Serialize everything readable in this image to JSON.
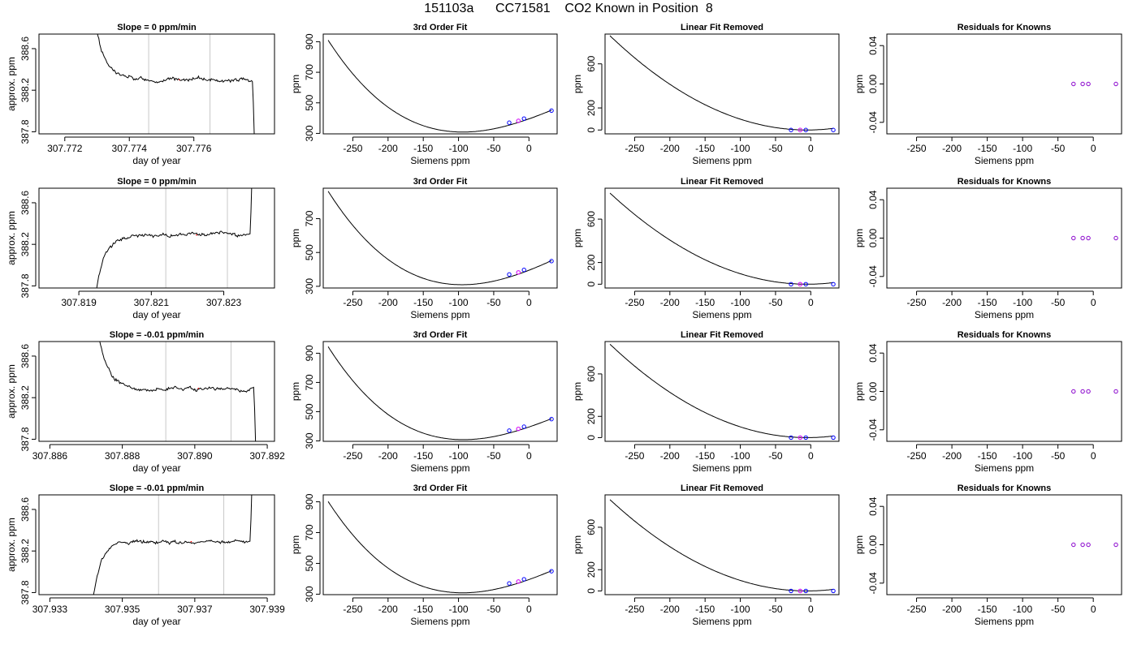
{
  "title": "151103a      CC71581    CO2 Known in Position  8",
  "chart_data": [
    {
      "row": 0,
      "col": 0,
      "type": "line",
      "title": "Slope =  0  ppm/min",
      "xlabel": "day of year",
      "ylabel": "approx. ppm",
      "xlim": [
        307.7712,
        307.7785
      ],
      "ylim": [
        387.78,
        388.74
      ],
      "xticks": [
        307.772,
        307.774,
        307.776
      ],
      "xticklabels": [
        "307.772",
        "307.774",
        "307.776"
      ],
      "yticks": [
        387.8,
        388.2,
        388.6
      ],
      "yticklabels": [
        "387.8",
        "388.2",
        "388.6"
      ],
      "vlines": [
        307.7746,
        307.7765
      ],
      "settle_from": "high",
      "x_start": 307.7728,
      "x_end": 307.7779,
      "level": 388.3
    },
    {
      "row": 1,
      "col": 0,
      "type": "line",
      "title": "Slope =  0  ppm/min",
      "xlabel": "day of year",
      "ylabel": "approx. ppm",
      "xlim": [
        307.8179,
        307.8244
      ],
      "ylim": [
        387.78,
        388.74
      ],
      "xticks": [
        307.819,
        307.821,
        307.823
      ],
      "xticklabels": [
        "307.819",
        "307.821",
        "307.823"
      ],
      "yticks": [
        387.8,
        388.2,
        388.6
      ],
      "yticklabels": [
        "387.8",
        "388.2",
        "388.6"
      ],
      "vlines": [
        307.8214,
        307.8231
      ],
      "settle_from": "low",
      "x_start": 307.8193,
      "x_end": 307.8238,
      "level": 388.29
    },
    {
      "row": 2,
      "col": 0,
      "type": "line",
      "title": "Slope =  -0.01  ppm/min",
      "xlabel": "day of year",
      "ylabel": "approx. ppm",
      "xlim": [
        307.8857,
        307.8922
      ],
      "ylim": [
        387.78,
        388.74
      ],
      "xticks": [
        307.886,
        307.888,
        307.89,
        307.892
      ],
      "xticklabels": [
        "307.886",
        "307.888",
        "307.890",
        "307.892"
      ],
      "yticks": [
        387.8,
        388.2,
        388.6
      ],
      "yticklabels": [
        "387.8",
        "388.2",
        "388.6"
      ],
      "vlines": [
        307.8892,
        307.891
      ],
      "settle_from": "high",
      "x_start": 307.8872,
      "x_end": 307.8917,
      "level": 388.29
    },
    {
      "row": 3,
      "col": 0,
      "type": "line",
      "title": "Slope =  -0.01  ppm/min",
      "xlabel": "day of year",
      "ylabel": "approx. ppm",
      "xlim": [
        307.9327,
        307.9392
      ],
      "ylim": [
        387.78,
        388.74
      ],
      "xticks": [
        307.933,
        307.935,
        307.937,
        307.939
      ],
      "xticklabels": [
        "307.933",
        "307.935",
        "307.937",
        "307.939"
      ],
      "yticks": [
        387.8,
        388.2,
        388.6
      ],
      "yticklabels": [
        "387.8",
        "388.2",
        "388.6"
      ],
      "vlines": [
        307.936,
        307.9378
      ],
      "settle_from": "low",
      "x_start": 307.934,
      "x_end": 307.9386,
      "level": 388.29
    },
    {
      "row": 0,
      "col": 1,
      "type": "scatter",
      "title": "3rd Order Fit",
      "xlabel": "Siemens ppm",
      "ylabel": "ppm",
      "xlim": [
        -292,
        40
      ],
      "ylim": [
        297,
        950
      ],
      "xticks": [
        -250,
        -200,
        -150,
        -100,
        -50,
        0
      ],
      "xticklabels": [
        "-250",
        "-200",
        "-150",
        "-100",
        "-50",
        "0"
      ],
      "yticks": [
        300,
        500,
        700,
        900
      ],
      "yticklabels": [
        "300",
        "500",
        "700",
        "900"
      ],
      "curve": {
        "model": "cubic",
        "x": [
          -285,
          -110,
          0,
          30
        ],
        "y": [
          910,
          312,
          395,
          448
        ]
      },
      "points": [
        {
          "x": -28,
          "y": 370,
          "color": "#0000ff"
        },
        {
          "x": -15,
          "y": 382,
          "color": "#00cccc"
        },
        {
          "x": -15,
          "y": 382,
          "color": "#ff00ff"
        },
        {
          "x": -7,
          "y": 397,
          "color": "#0000ff"
        },
        {
          "x": 32,
          "y": 449,
          "color": "#0000ff"
        }
      ]
    },
    {
      "row": 1,
      "col": 1,
      "type": "scatter",
      "title": "3rd Order Fit",
      "xlabel": "Siemens ppm",
      "ylabel": "ppm",
      "xlim": [
        -292,
        40
      ],
      "ylim": [
        290,
        880
      ],
      "xticks": [
        -250,
        -200,
        -150,
        -100,
        -50,
        0
      ],
      "xticklabels": [
        "-250",
        "-200",
        "-150",
        "-100",
        "-50",
        "0"
      ],
      "yticks": [
        300,
        500,
        700
      ],
      "yticklabels": [
        "300",
        "500",
        "700"
      ],
      "curve": {
        "model": "cubic",
        "x": [
          -285,
          -110,
          0,
          30
        ],
        "y": [
          862,
          312,
          395,
          448
        ]
      },
      "points": [
        {
          "x": -28,
          "y": 370,
          "color": "#0000ff"
        },
        {
          "x": -15,
          "y": 382,
          "color": "#00cccc"
        },
        {
          "x": -15,
          "y": 382,
          "color": "#ff00ff"
        },
        {
          "x": -7,
          "y": 397,
          "color": "#0000ff"
        },
        {
          "x": 32,
          "y": 449,
          "color": "#0000ff"
        }
      ]
    },
    {
      "row": 2,
      "col": 1,
      "type": "scatter",
      "title": "3rd Order Fit",
      "xlabel": "Siemens ppm",
      "ylabel": "ppm",
      "xlim": [
        -292,
        40
      ],
      "ylim": [
        297,
        980
      ],
      "xticks": [
        -250,
        -200,
        -150,
        -100,
        -50,
        0
      ],
      "xticklabels": [
        "-250",
        "-200",
        "-150",
        "-100",
        "-50",
        "0"
      ],
      "yticks": [
        300,
        500,
        700,
        900
      ],
      "yticklabels": [
        "300",
        "500",
        "700",
        "900"
      ],
      "curve": {
        "model": "cubic",
        "x": [
          -285,
          -110,
          0,
          30
        ],
        "y": [
          945,
          312,
          395,
          448
        ]
      },
      "points": [
        {
          "x": -28,
          "y": 370,
          "color": "#0000ff"
        },
        {
          "x": -15,
          "y": 382,
          "color": "#00cccc"
        },
        {
          "x": -15,
          "y": 382,
          "color": "#ff00ff"
        },
        {
          "x": -7,
          "y": 397,
          "color": "#0000ff"
        },
        {
          "x": 32,
          "y": 449,
          "color": "#0000ff"
        }
      ]
    },
    {
      "row": 3,
      "col": 1,
      "type": "scatter",
      "title": "3rd Order Fit",
      "xlabel": "Siemens ppm",
      "ylabel": "ppm",
      "xlim": [
        -292,
        40
      ],
      "ylim": [
        297,
        945
      ],
      "xticks": [
        -250,
        -200,
        -150,
        -100,
        -50,
        0
      ],
      "xticklabels": [
        "-250",
        "-200",
        "-150",
        "-100",
        "-50",
        "0"
      ],
      "yticks": [
        300,
        500,
        700,
        900
      ],
      "yticklabels": [
        "300",
        "500",
        "700",
        "900"
      ],
      "curve": {
        "model": "cubic",
        "x": [
          -285,
          -110,
          0,
          30
        ],
        "y": [
          902,
          312,
          395,
          448
        ]
      },
      "points": [
        {
          "x": -28,
          "y": 370,
          "color": "#0000ff"
        },
        {
          "x": -15,
          "y": 382,
          "color": "#00cccc"
        },
        {
          "x": -15,
          "y": 382,
          "color": "#ff00ff"
        },
        {
          "x": -7,
          "y": 397,
          "color": "#0000ff"
        },
        {
          "x": 32,
          "y": 449,
          "color": "#0000ff"
        }
      ]
    },
    {
      "row": 0,
      "col": 2,
      "type": "scatter",
      "title": "Linear Fit Removed",
      "xlabel": "Siemens ppm",
      "ylabel": "ppm",
      "xlim": [
        -292,
        40
      ],
      "ylim": [
        -35,
        870
      ],
      "xticks": [
        -250,
        -200,
        -150,
        -100,
        -50,
        0
      ],
      "xticklabels": [
        "-250",
        "-200",
        "-150",
        "-100",
        "-50",
        "0"
      ],
      "yticks": [
        0,
        200,
        600
      ],
      "yticklabels": [
        "0",
        "200",
        "600"
      ],
      "curve": {
        "model": "quad",
        "vertex": -5,
        "at": -285,
        "value": 855
      },
      "points": [
        {
          "x": -28,
          "y": 0,
          "color": "#0000ff"
        },
        {
          "x": -15,
          "y": 0,
          "color": "#00cccc"
        },
        {
          "x": -15,
          "y": 0,
          "color": "#ff00ff"
        },
        {
          "x": -7,
          "y": 0,
          "color": "#0000ff"
        },
        {
          "x": 32,
          "y": 0,
          "color": "#0000ff"
        }
      ]
    },
    {
      "row": 1,
      "col": 2,
      "type": "scatter",
      "title": "Linear Fit Removed",
      "xlabel": "Siemens ppm",
      "ylabel": "ppm",
      "xlim": [
        -292,
        40
      ],
      "ylim": [
        -35,
        885
      ],
      "xticks": [
        -250,
        -200,
        -150,
        -100,
        -50,
        0
      ],
      "xticklabels": [
        "-250",
        "-200",
        "-150",
        "-100",
        "-50",
        "0"
      ],
      "yticks": [
        0,
        200,
        600
      ],
      "yticklabels": [
        "0",
        "200",
        "600"
      ],
      "curve": {
        "model": "quad",
        "vertex": -5,
        "at": -285,
        "value": 840
      },
      "points": [
        {
          "x": -28,
          "y": 0,
          "color": "#0000ff"
        },
        {
          "x": -15,
          "y": 0,
          "color": "#00cccc"
        },
        {
          "x": -15,
          "y": 0,
          "color": "#ff00ff"
        },
        {
          "x": -7,
          "y": 0,
          "color": "#0000ff"
        },
        {
          "x": 32,
          "y": 0,
          "color": "#0000ff"
        }
      ]
    },
    {
      "row": 2,
      "col": 2,
      "type": "scatter",
      "title": "Linear Fit Removed",
      "xlabel": "Siemens ppm",
      "ylabel": "ppm",
      "xlim": [
        -292,
        40
      ],
      "ylim": [
        -35,
        905
      ],
      "xticks": [
        -250,
        -200,
        -150,
        -100,
        -50,
        0
      ],
      "xticklabels": [
        "-250",
        "-200",
        "-150",
        "-100",
        "-50",
        "0"
      ],
      "yticks": [
        0,
        200,
        600
      ],
      "yticklabels": [
        "0",
        "200",
        "600"
      ],
      "curve": {
        "model": "quad",
        "vertex": -5,
        "at": -285,
        "value": 880
      },
      "points": [
        {
          "x": -28,
          "y": 0,
          "color": "#0000ff"
        },
        {
          "x": -15,
          "y": 0,
          "color": "#00cccc"
        },
        {
          "x": -15,
          "y": 0,
          "color": "#ff00ff"
        },
        {
          "x": -7,
          "y": 0,
          "color": "#0000ff"
        },
        {
          "x": 32,
          "y": 0,
          "color": "#0000ff"
        }
      ]
    },
    {
      "row": 3,
      "col": 2,
      "type": "scatter",
      "title": "Linear Fit Removed",
      "xlabel": "Siemens ppm",
      "ylabel": "ppm",
      "xlim": [
        -292,
        40
      ],
      "ylim": [
        -35,
        905
      ],
      "xticks": [
        -250,
        -200,
        -150,
        -100,
        -50,
        0
      ],
      "xticklabels": [
        "-250",
        "-200",
        "-150",
        "-100",
        "-50",
        "0"
      ],
      "yticks": [
        0,
        200,
        600
      ],
      "yticklabels": [
        "0",
        "200",
        "600"
      ],
      "curve": {
        "model": "quad",
        "vertex": -5,
        "at": -285,
        "value": 860
      },
      "points": [
        {
          "x": -28,
          "y": 0,
          "color": "#0000ff"
        },
        {
          "x": -15,
          "y": 0,
          "color": "#00cccc"
        },
        {
          "x": -15,
          "y": 0,
          "color": "#ff00ff"
        },
        {
          "x": -7,
          "y": 0,
          "color": "#0000ff"
        },
        {
          "x": 32,
          "y": 0,
          "color": "#0000ff"
        }
      ]
    },
    {
      "row": 0,
      "col": 3,
      "type": "scatter",
      "title": "Residuals for Knowns",
      "xlabel": "Siemens ppm",
      "ylabel": "ppm",
      "xlim": [
        -292,
        40
      ],
      "ylim": [
        -0.052,
        0.052
      ],
      "xticks": [
        -250,
        -200,
        -150,
        -100,
        -50,
        0
      ],
      "xticklabels": [
        "-250",
        "-200",
        "-150",
        "-100",
        "-50",
        "0"
      ],
      "yticks": [
        -0.04,
        0,
        0.04
      ],
      "yticklabels": [
        "-0.04",
        "0.00",
        "0.04"
      ],
      "points": [
        {
          "x": -28,
          "y": 0,
          "color": "#8800cc"
        },
        {
          "x": -15,
          "y": 0,
          "color": "#8800cc"
        },
        {
          "x": -7,
          "y": 0,
          "color": "#8800cc"
        },
        {
          "x": 32,
          "y": 0,
          "color": "#8800cc"
        }
      ]
    },
    {
      "row": 1,
      "col": 3,
      "type": "scatter",
      "title": "Residuals for Knowns",
      "xlabel": "Siemens ppm",
      "ylabel": "ppm",
      "xlim": [
        -292,
        40
      ],
      "ylim": [
        -0.052,
        0.052
      ],
      "xticks": [
        -250,
        -200,
        -150,
        -100,
        -50,
        0
      ],
      "xticklabels": [
        "-250",
        "-200",
        "-150",
        "-100",
        "-50",
        "0"
      ],
      "yticks": [
        -0.04,
        0,
        0.04
      ],
      "yticklabels": [
        "-0.04",
        "0.00",
        "0.04"
      ],
      "points": [
        {
          "x": -28,
          "y": 0,
          "color": "#8800cc"
        },
        {
          "x": -15,
          "y": 0,
          "color": "#8800cc"
        },
        {
          "x": -7,
          "y": 0,
          "color": "#8800cc"
        },
        {
          "x": 32,
          "y": 0,
          "color": "#8800cc"
        }
      ]
    },
    {
      "row": 2,
      "col": 3,
      "type": "scatter",
      "title": "Residuals for Knowns",
      "xlabel": "Siemens ppm",
      "ylabel": "ppm",
      "xlim": [
        -292,
        40
      ],
      "ylim": [
        -0.052,
        0.052
      ],
      "xticks": [
        -250,
        -200,
        -150,
        -100,
        -50,
        0
      ],
      "xticklabels": [
        "-250",
        "-200",
        "-150",
        "-100",
        "-50",
        "0"
      ],
      "yticks": [
        -0.04,
        0,
        0.04
      ],
      "yticklabels": [
        "-0.04",
        "0.00",
        "0.04"
      ],
      "points": [
        {
          "x": -28,
          "y": 0,
          "color": "#8800cc"
        },
        {
          "x": -15,
          "y": 0,
          "color": "#8800cc"
        },
        {
          "x": -7,
          "y": 0,
          "color": "#8800cc"
        },
        {
          "x": 32,
          "y": 0,
          "color": "#8800cc"
        }
      ]
    },
    {
      "row": 3,
      "col": 3,
      "type": "scatter",
      "title": "Residuals for Knowns",
      "xlabel": "Siemens ppm",
      "ylabel": "ppm",
      "xlim": [
        -292,
        40
      ],
      "ylim": [
        -0.052,
        0.052
      ],
      "xticks": [
        -250,
        -200,
        -150,
        -100,
        -50,
        0
      ],
      "xticklabels": [
        "-250",
        "-200",
        "-150",
        "-100",
        "-50",
        "0"
      ],
      "yticks": [
        -0.04,
        0,
        0.04
      ],
      "yticklabels": [
        "-0.04",
        "0.00",
        "0.04"
      ],
      "points": [
        {
          "x": -28,
          "y": 0,
          "color": "#8800cc"
        },
        {
          "x": -15,
          "y": 0,
          "color": "#8800cc"
        },
        {
          "x": -7,
          "y": 0,
          "color": "#8800cc"
        },
        {
          "x": 32,
          "y": 0,
          "color": "#8800cc"
        }
      ]
    }
  ]
}
